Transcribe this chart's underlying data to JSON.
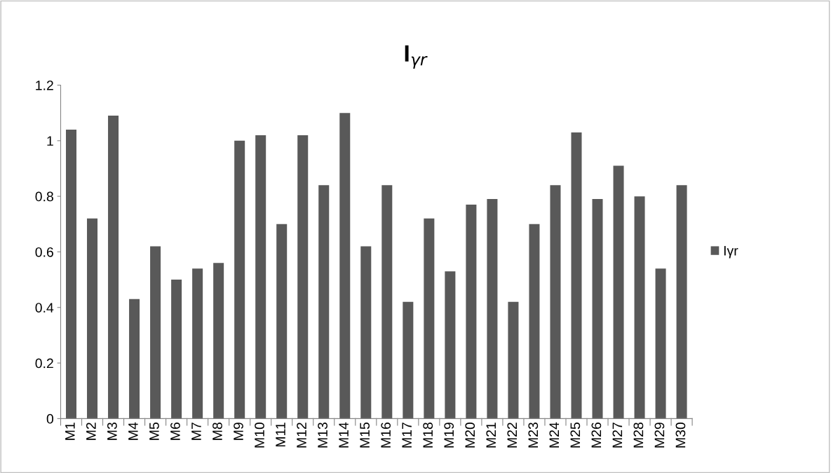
{
  "chart_data": {
    "type": "bar",
    "title": "I$_{γr}$",
    "categories": [
      "M1",
      "M2",
      "M3",
      "M4",
      "M5",
      "M6",
      "M7",
      "M8",
      "M9",
      "M10",
      "M11",
      "M12",
      "M13",
      "M14",
      "M15",
      "M16",
      "M17",
      "M18",
      "M19",
      "M20",
      "M21",
      "M22",
      "M23",
      "M24",
      "M25",
      "M26",
      "M27",
      "M28",
      "M29",
      "M30"
    ],
    "series": [
      {
        "name": "Iγr",
        "color": "#595959",
        "values": [
          1.04,
          0.72,
          1.09,
          0.43,
          0.62,
          0.5,
          0.54,
          0.56,
          1.0,
          1.02,
          0.7,
          1.02,
          0.84,
          1.1,
          0.62,
          0.84,
          0.42,
          0.72,
          0.53,
          0.77,
          0.79,
          0.42,
          0.7,
          0.84,
          1.03,
          0.79,
          0.91,
          0.8,
          0.54,
          0.84
        ]
      }
    ],
    "ylim": [
      0,
      1.2
    ],
    "yticks": [
      0,
      {
        "value": 0.2,
        "label": "0.2"
      },
      {
        "value": 0.4,
        "label": "0.4"
      },
      {
        "value": 0.6,
        "label": "0.6"
      },
      {
        "value": 0.8,
        "label": "0.8"
      },
      1,
      {
        "value": 1.2,
        "label": "1.2"
      }
    ],
    "grid": false,
    "legend": "right"
  }
}
